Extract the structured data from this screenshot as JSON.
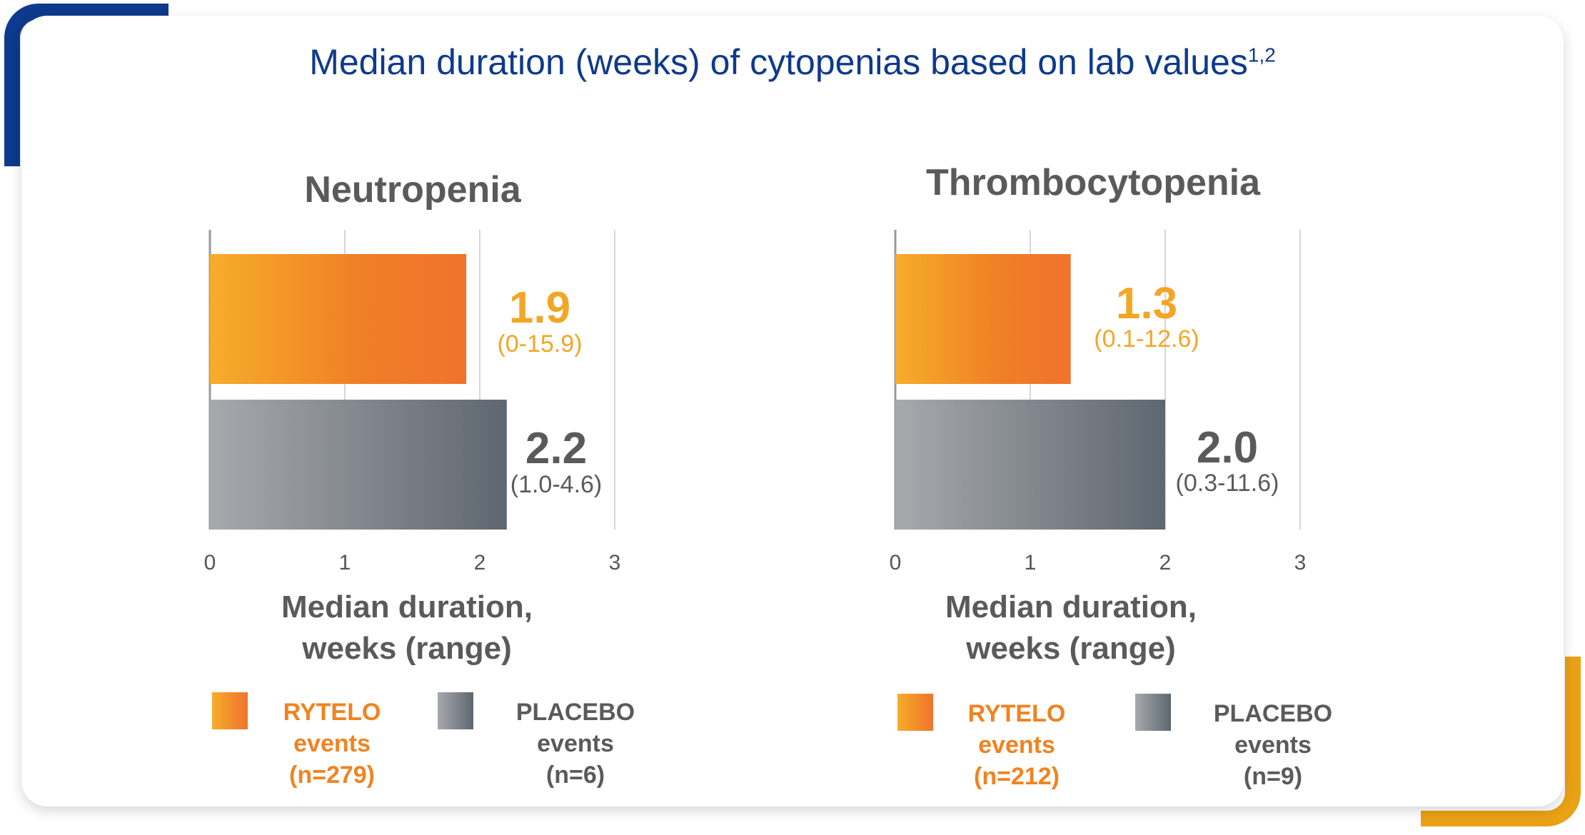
{
  "title": "Median duration (weeks) of cytopenias based on lab values",
  "title_sup": "1,2",
  "colors": {
    "navy": "#0d3a8c",
    "orange_start": "#f6ad2a",
    "orange_end": "#f0732d",
    "gray_start": "#a7a9ad",
    "gray_end": "#5e6770",
    "gold": "#e9a116"
  },
  "chart_data": [
    {
      "type": "bar",
      "orientation": "horizontal",
      "title": "Neutropenia",
      "xlabel_line1": "Median duration,",
      "xlabel_line2": "weeks (range)",
      "xlim": [
        0,
        3
      ],
      "xticks": [
        "0",
        "1",
        "2",
        "3"
      ],
      "series": [
        {
          "name": "RYTELO events",
          "n": "(n=279)",
          "value": 1.9,
          "value_label": "1.9",
          "range_label": "(0-15.9)"
        },
        {
          "name": "PLACEBO events",
          "n": "(n=6)",
          "value": 2.2,
          "value_label": "2.2",
          "range_label": "(1.0-4.6)"
        }
      ]
    },
    {
      "type": "bar",
      "orientation": "horizontal",
      "title": "Thrombocytopenia",
      "xlabel_line1": "Median duration,",
      "xlabel_line2": "weeks (range)",
      "xlim": [
        0,
        3
      ],
      "xticks": [
        "0",
        "1",
        "2",
        "3"
      ],
      "series": [
        {
          "name": "RYTELO events",
          "n": "(n=212)",
          "value": 1.3,
          "value_label": "1.3",
          "range_label": "(0.1-12.6)"
        },
        {
          "name": "PLACEBO events",
          "n": "(n=9)",
          "value": 2.0,
          "value_label": "2.0",
          "range_label": "(0.3-11.6)"
        }
      ]
    }
  ]
}
